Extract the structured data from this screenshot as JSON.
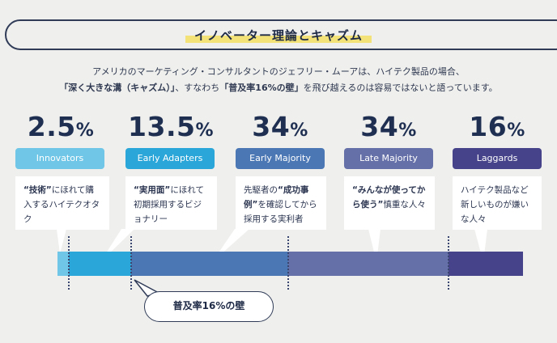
{
  "title": "イノベーター理論とキャズム",
  "intro": {
    "line1": "アメリカのマーケティング・コンサルタントのジェフリー・ムーアは、ハイテク製品の場合、",
    "line2_bold1": "「深く大きな溝（キャズム）」",
    "line2_mid": "、すなわち",
    "line2_bold2": "「普及率16%の壁」",
    "line2_end": "を飛び越えるのは容易ではないと語っています。"
  },
  "segments": [
    {
      "pct_num": "2.5",
      "pct_sign": "%",
      "label": "Innovators",
      "color": "#6fc6e6",
      "desc_bold": "“技術”",
      "desc_rest": "にほれて購入するハイテクオタク"
    },
    {
      "pct_num": "13.5",
      "pct_sign": "%",
      "label": "Early Adapters",
      "color": "#2aa6d8",
      "desc_bold": "“実用面”",
      "desc_rest": "にほれて初期採用するビジョナリー"
    },
    {
      "pct_num": "34",
      "pct_sign": "%",
      "label": "Early Majority",
      "color": "#4b78b5",
      "desc_pre": "先駆者の",
      "desc_bold": "“成功事例”",
      "desc_rest": "を確認してから採用する実利者"
    },
    {
      "pct_num": "34",
      "pct_sign": "%",
      "label": "Late Majority",
      "color": "#6570a8",
      "desc_bold": "“みんなが使ってから使う”",
      "desc_rest": "慎重な人々"
    },
    {
      "pct_num": "16",
      "pct_sign": "%",
      "label": "Laggards",
      "color": "#46438a",
      "desc_rest": "ハイテク製品など新しいものが嫌いな人々"
    }
  ],
  "chasm_label": "普及率16%の壁"
}
